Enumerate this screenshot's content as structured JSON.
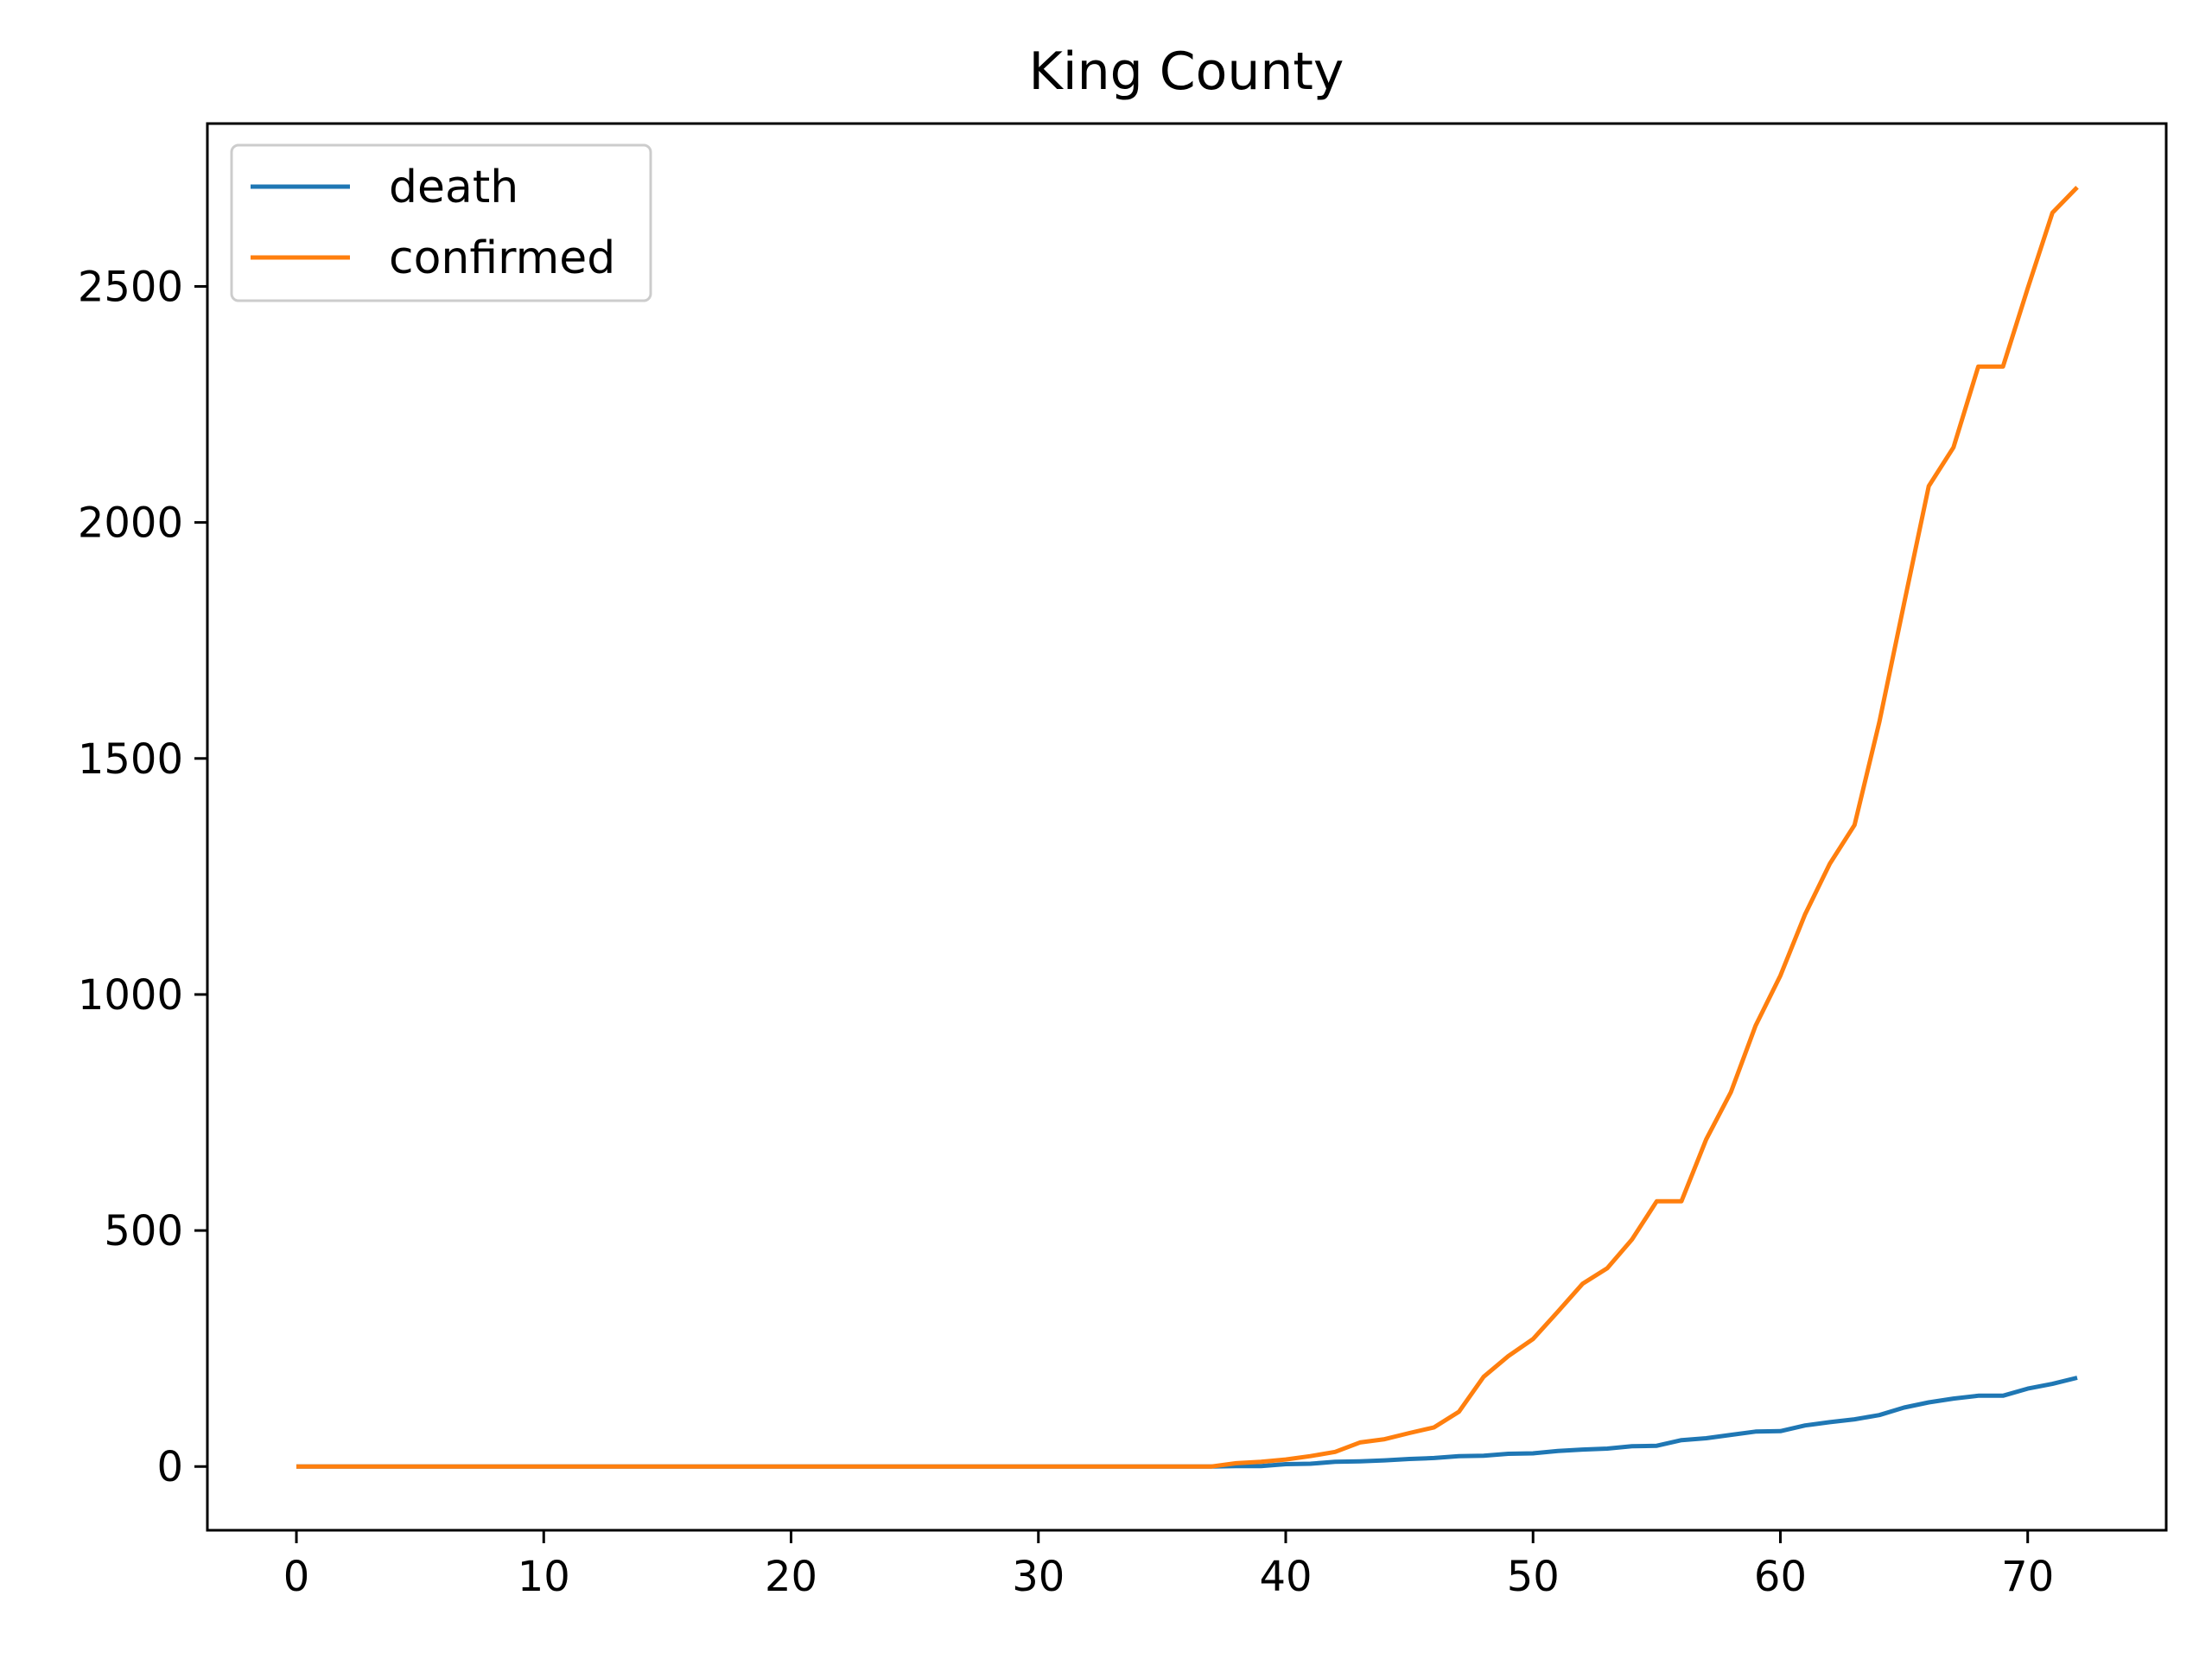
{
  "chart_data": {
    "type": "line",
    "title": "King County",
    "xlabel": "",
    "ylabel": "",
    "xlim": [
      -3.6,
      75.6
    ],
    "ylim": [
      -135,
      2845
    ],
    "xticks": [
      0,
      10,
      20,
      30,
      40,
      50,
      60,
      70
    ],
    "yticks": [
      0,
      500,
      1000,
      1500,
      2000,
      2500
    ],
    "grid": false,
    "legend": "upper-left",
    "series": [
      {
        "name": "death",
        "color": "#1f77b4",
        "values": [
          0,
          0,
          0,
          0,
          0,
          0,
          0,
          0,
          0,
          0,
          0,
          0,
          0,
          0,
          0,
          0,
          0,
          0,
          0,
          0,
          0,
          0,
          0,
          0,
          0,
          0,
          0,
          0,
          0,
          0,
          0,
          0,
          0,
          0,
          0,
          0,
          0,
          0,
          1,
          1,
          5,
          6,
          10,
          11,
          13,
          16,
          18,
          22,
          23,
          27,
          28,
          33,
          36,
          38,
          43,
          44,
          56,
          60,
          67,
          74,
          75,
          87,
          94,
          100,
          109,
          125,
          136,
          144,
          150,
          150,
          165,
          175,
          188
        ]
      },
      {
        "name": "confirmed",
        "color": "#ff7f0e",
        "values": [
          0,
          0,
          0,
          0,
          0,
          0,
          0,
          0,
          0,
          0,
          0,
          0,
          0,
          0,
          0,
          0,
          0,
          0,
          0,
          0,
          0,
          0,
          0,
          0,
          0,
          0,
          0,
          0,
          0,
          0,
          0,
          0,
          0,
          0,
          0,
          0,
          0,
          0,
          7,
          10,
          15,
          22,
          31,
          51,
          58,
          71,
          83,
          116,
          190,
          234,
          270,
          328,
          387,
          420,
          481,
          562,
          562,
          693,
          793,
          934,
          1040,
          1170,
          1277,
          1359,
          1577,
          1828,
          2077,
          2159,
          2330,
          2330,
          2496,
          2656,
          2710
        ]
      }
    ]
  }
}
